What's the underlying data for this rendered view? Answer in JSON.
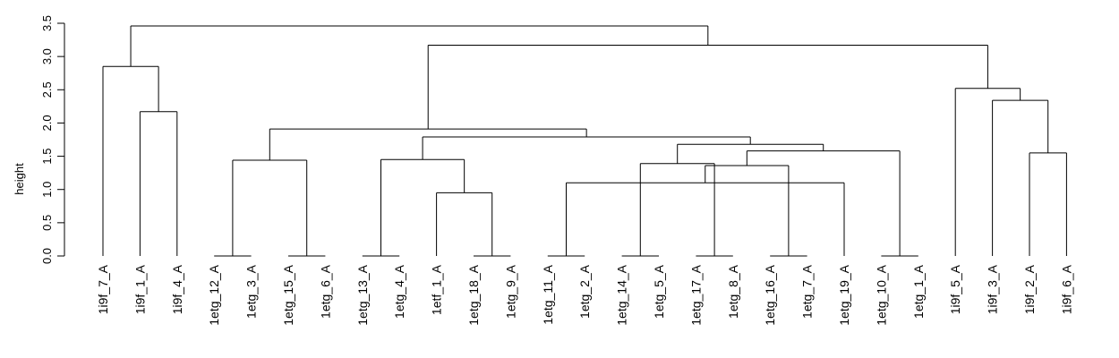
{
  "chart_data": {
    "type": "dendrogram",
    "ylabel": "height",
    "ylim": [
      0,
      3.5
    ],
    "yticks": [
      "0.0",
      "0.5",
      "1.0",
      "1.5",
      "2.0",
      "2.5",
      "3.0",
      "3.5"
    ],
    "ytick_values": [
      0,
      0.5,
      1.0,
      1.5,
      2.0,
      2.5,
      3.0,
      3.5
    ],
    "leaves": [
      {
        "label": "1i9f_7_A",
        "height": 0
      },
      {
        "label": "1i9f_1_A",
        "height": 0
      },
      {
        "label": "1i9f_4_A",
        "height": 0
      },
      {
        "label": "1etg_12_A",
        "height": 0
      },
      {
        "label": "1etg_3_A",
        "height": 0
      },
      {
        "label": "1etg_15_A",
        "height": 0
      },
      {
        "label": "1etg_6_A",
        "height": 0
      },
      {
        "label": "1etg_13_A",
        "height": 0
      },
      {
        "label": "1etg_4_A",
        "height": 0
      },
      {
        "label": "1etf_1_A",
        "height": 0
      },
      {
        "label": "1etg_18_A",
        "height": 0
      },
      {
        "label": "1etg_9_A",
        "height": 0
      },
      {
        "label": "1etg_11_A",
        "height": 0
      },
      {
        "label": "1etg_2_A",
        "height": 0
      },
      {
        "label": "1etg_14_A",
        "height": 0
      },
      {
        "label": "1etg_5_A",
        "height": 0
      },
      {
        "label": "1etg_17_A",
        "height": 0
      },
      {
        "label": "1etg_8_A",
        "height": 0
      },
      {
        "label": "1etg_16_A",
        "height": 0
      },
      {
        "label": "1etg_7_A",
        "height": 0
      },
      {
        "label": "1etg_19_A",
        "height": 0
      },
      {
        "label": "1etg_10_A",
        "height": 0
      },
      {
        "label": "1etg_1_A",
        "height": 0
      },
      {
        "label": "1i9f_5_A",
        "height": 0
      },
      {
        "label": "1i9f_3_A",
        "height": 0
      },
      {
        "label": "1i9f_2_A",
        "height": 0
      },
      {
        "label": "1i9f_6_A",
        "height": 0
      }
    ],
    "merges": [
      {
        "left": "L3",
        "right": "L4",
        "height": 0
      },
      {
        "left": "L5",
        "right": "L6",
        "height": 0
      },
      {
        "left": "L7",
        "right": "L8",
        "height": 0
      },
      {
        "left": "L10",
        "right": "L11",
        "height": 0
      },
      {
        "left": "L12",
        "right": "L13",
        "height": 0
      },
      {
        "left": "L14",
        "right": "L15",
        "height": 0
      },
      {
        "left": "L16",
        "right": "L17",
        "height": 0
      },
      {
        "left": "L18",
        "right": "L19",
        "height": 0
      },
      {
        "left": "L21",
        "right": "L22",
        "height": 0
      },
      {
        "left": "M4",
        "right": "L20",
        "height": 1.1
      },
      {
        "left": "L9",
        "right": "M3",
        "height": 0.95
      },
      {
        "left": "M0",
        "right": "M1",
        "height": 1.44
      },
      {
        "left": "M2",
        "right": "M10",
        "height": 1.45
      },
      {
        "left": "M7",
        "right": "M9",
        "height": 1.36
      },
      {
        "left": "M5",
        "right": "M6",
        "height": 1.39
      },
      {
        "left": "M8",
        "right": "M13",
        "height": 1.58
      },
      {
        "left": "M14",
        "right": "M15",
        "height": 1.68
      },
      {
        "left": "M12",
        "right": "M16",
        "height": 1.79
      },
      {
        "left": "M11",
        "right": "M17",
        "height": 1.91
      },
      {
        "left": "L25",
        "right": "L26",
        "height": 1.55
      },
      {
        "left": "L24",
        "right": "M19",
        "height": 2.34
      },
      {
        "left": "L23",
        "right": "M20",
        "height": 2.52
      },
      {
        "left": "M18",
        "right": "M21",
        "height": 3.17
      },
      {
        "left": "L1",
        "right": "L2",
        "height": 2.17
      },
      {
        "left": "L0",
        "right": "M23",
        "height": 2.85
      },
      {
        "left": "M24",
        "right": "M22",
        "height": 3.46
      }
    ]
  }
}
